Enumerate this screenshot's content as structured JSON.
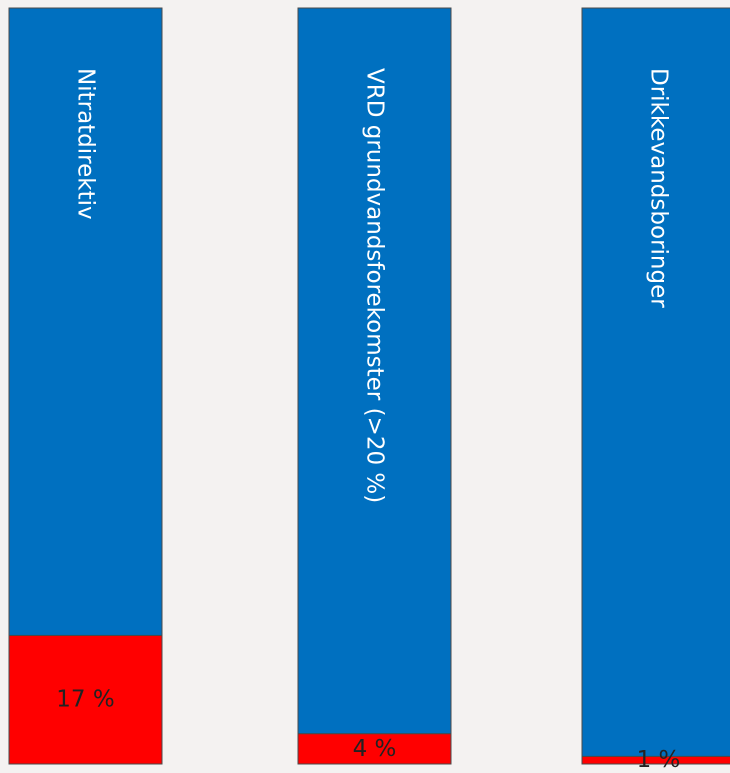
{
  "chart_data": {
    "type": "bar",
    "stacked": true,
    "categories": [
      "Nitratdirektiv",
      "VRD grundvandsforekomster (>20 %)",
      "Drikkevandsboringer"
    ],
    "series": [
      {
        "values": [
          17,
          4,
          1
        ],
        "color": "#ff0000"
      },
      {
        "values": [
          83,
          96,
          99
        ],
        "color": "#0070c0"
      }
    ],
    "value_labels": [
      "17 %",
      "4 %",
      "1 %"
    ],
    "ylim": [
      0,
      100
    ],
    "grid": false,
    "legend": "none"
  }
}
